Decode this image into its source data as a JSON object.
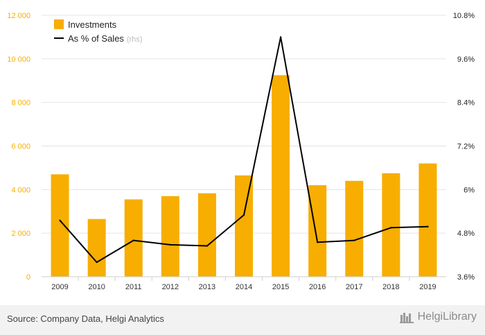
{
  "chart_data": {
    "type": "bar",
    "categories": [
      "2009",
      "2010",
      "2011",
      "2012",
      "2013",
      "2014",
      "2015",
      "2016",
      "2017",
      "2018",
      "2019"
    ],
    "series": [
      {
        "name": "Investments",
        "type": "bar",
        "axis": "left",
        "color": "#f7ae00",
        "values": [
          4700,
          2650,
          3550,
          3700,
          3830,
          4650,
          9250,
          4200,
          4400,
          4750,
          5200
        ]
      },
      {
        "name": "As % of Sales",
        "type": "line",
        "axis": "right",
        "color": "#000000",
        "values": [
          5.15,
          4.0,
          4.6,
          4.48,
          4.45,
          5.3,
          10.2,
          4.55,
          4.6,
          4.95,
          4.98
        ]
      }
    ],
    "legend_suffix": "(rhs)",
    "y_left": {
      "min": 0,
      "max": 12000,
      "ticks": [
        "0",
        "2 000",
        "4 000",
        "6 000",
        "8 000",
        "10 000",
        "12 000"
      ]
    },
    "y_right": {
      "min": 3.6,
      "max": 10.8,
      "ticks": [
        "3.6%",
        "4.8%",
        "6%",
        "7.2%",
        "8.4%",
        "9.6%",
        "10.8%"
      ]
    },
    "legend_position": "top-left",
    "grid": "horizontal"
  },
  "footer": {
    "source": "Source: Company Data, Helgi Analytics",
    "logo_text": "HelgiLibrary"
  },
  "colors": {
    "bar": "#f7ae00",
    "left_axis_text": "#f7ae00",
    "line": "#000000"
  }
}
